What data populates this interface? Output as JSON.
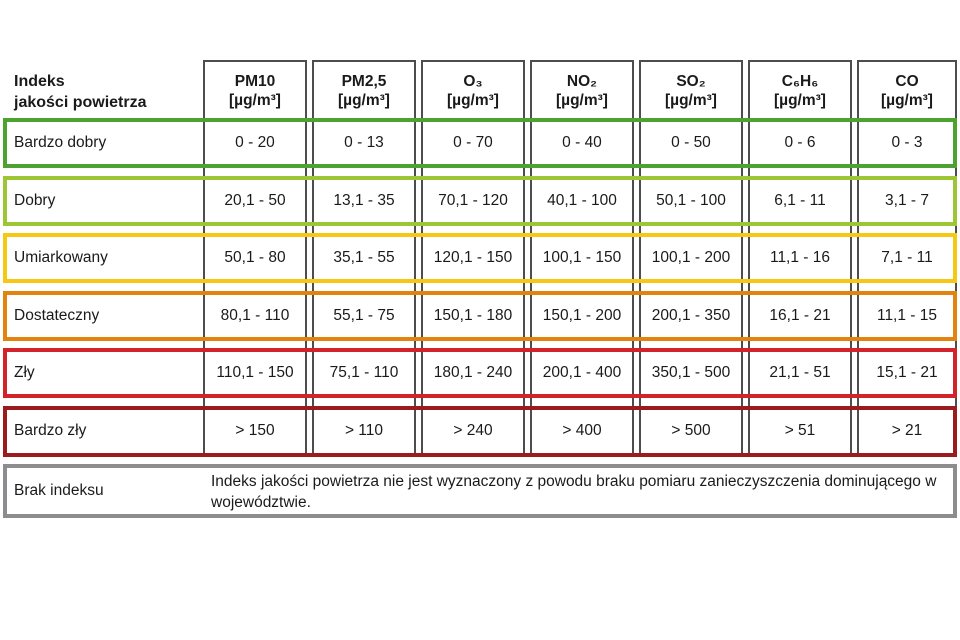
{
  "colors": {
    "grid": "#4D4D4D",
    "text": "#1A1A1A",
    "background": "#FFFFFF"
  },
  "chart_data": {
    "type": "table",
    "title": "Indeks jakości powietrza",
    "corner_header": "Indeks\njakości powietrza",
    "corner_header_line1": "Indeks",
    "corner_header_line2": "jakości powietrza",
    "columns": [
      {
        "name": "PM10",
        "unit": "[µg/m³]"
      },
      {
        "name": "PM2,5",
        "unit": "[µg/m³]"
      },
      {
        "name": "O₃",
        "unit": "[µg/m³]"
      },
      {
        "name": "NO₂",
        "unit": "[µg/m³]"
      },
      {
        "name": "SO₂",
        "unit": "[µg/m³]"
      },
      {
        "name": "C₆H₆",
        "unit": "[µg/m³]"
      },
      {
        "name": "CO",
        "unit": "[µg/m³]"
      }
    ],
    "rows": [
      {
        "label": "Bardzo dobry",
        "color": "#4DA32F",
        "values": [
          "0 - 20",
          "0 - 13",
          "0 - 70",
          "0 - 40",
          "0 - 50",
          "0 - 6",
          "0 - 3"
        ]
      },
      {
        "label": "Dobry",
        "color": "#9CC734",
        "values": [
          "20,1 - 50",
          "13,1 - 35",
          "70,1 - 120",
          "40,1 - 100",
          "50,1 - 100",
          "6,1 - 11",
          "3,1 - 7"
        ]
      },
      {
        "label": "Umiarkowany",
        "color": "#F6C713",
        "values": [
          "50,1 - 80",
          "35,1 - 55",
          "120,1 - 150",
          "100,1 - 150",
          "100,1 - 200",
          "11,1 - 16",
          "7,1 - 11"
        ]
      },
      {
        "label": "Dostateczny",
        "color": "#E1830E",
        "values": [
          "80,1 - 110",
          "55,1 - 75",
          "150,1 - 180",
          "150,1 - 200",
          "200,1 - 350",
          "16,1 - 21",
          "11,1 - 15"
        ]
      },
      {
        "label": "Zły",
        "color": "#D2232A",
        "values": [
          "110,1 - 150",
          "75,1 - 110",
          "180,1 - 240",
          "200,1 - 400",
          "350,1 - 500",
          "21,1 - 51",
          "15,1 - 21"
        ]
      },
      {
        "label": "Bardzo zły",
        "color": "#9C1B1E",
        "values": [
          "> 150",
          "> 110",
          "> 240",
          "> 400",
          "> 500",
          "> 51",
          "> 21"
        ]
      }
    ],
    "no_index_row": {
      "label": "Brak indeksu",
      "color": "#8D8D8F",
      "note": "Indeks jakości powietrza nie jest wyznaczony z powodu braku pomiaru zanieczyszczenia dominującego w województwie."
    }
  }
}
